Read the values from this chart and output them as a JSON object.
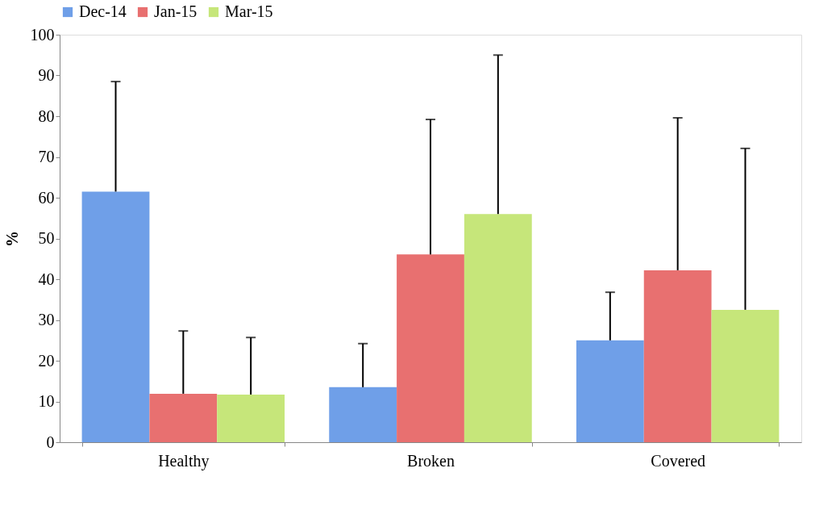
{
  "chart_data": {
    "type": "bar",
    "ylabel": "%",
    "categories": [
      "Healthy",
      "Broken",
      "Covered"
    ],
    "series": [
      {
        "name": "Dec-14",
        "color": "#6f9fe8",
        "values": [
          61.5,
          13.5,
          25.0
        ],
        "errors": [
          [
            61.5,
            88.5
          ],
          [
            13.5,
            24.2
          ],
          [
            25.0,
            36.8
          ]
        ]
      },
      {
        "name": "Jan-15",
        "color": "#e87070",
        "values": [
          11.9,
          46.1,
          42.2
        ],
        "errors": [
          [
            11.9,
            27.3
          ],
          [
            46.1,
            79.2
          ],
          [
            42.2,
            79.6
          ]
        ]
      },
      {
        "name": "Mar-15",
        "color": "#c6e67a",
        "values": [
          11.7,
          56.0,
          32.5
        ],
        "errors": [
          [
            11.7,
            25.7
          ],
          [
            56.0,
            95.0
          ],
          [
            32.5,
            72.1
          ]
        ]
      }
    ],
    "ylim": [
      0,
      100
    ],
    "yticks": [
      0,
      10,
      20,
      30,
      40,
      50,
      60,
      70,
      80,
      90,
      100
    ],
    "grid": false,
    "legend": "top"
  }
}
